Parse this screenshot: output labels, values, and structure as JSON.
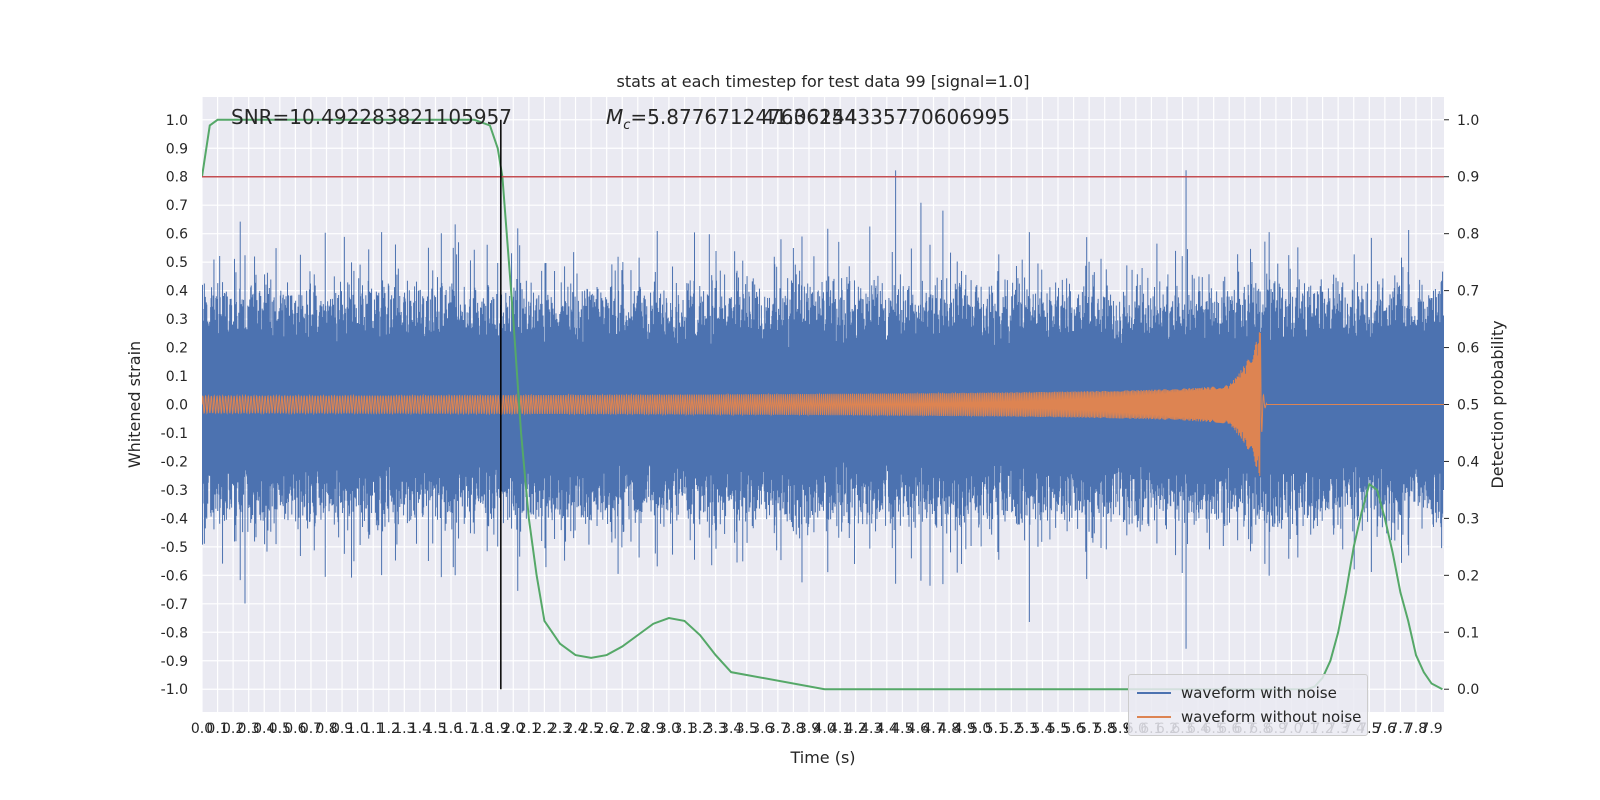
{
  "chart_data": {
    "type": "line",
    "title": "stats at each timestep for test data 99 [signal=1.0]",
    "xlabel": "Time (s)",
    "ylabel": "Whitened strain",
    "ylabel_right": "Detection probability",
    "xlim": [
      0.0,
      7.98
    ],
    "ylim": [
      -1.08,
      1.08
    ],
    "ylim_right": [
      -0.04,
      1.04
    ],
    "x_ticks": [
      "0.0",
      "0.1",
      "0.2",
      "0.3",
      "0.4",
      "0.5",
      "0.6",
      "0.7",
      "0.8",
      "0.9",
      "1.0",
      "1.1",
      "1.2",
      "1.3",
      "1.4",
      "1.5",
      "1.6",
      "1.7",
      "1.8",
      "1.9",
      "2.0",
      "2.1",
      "2.2",
      "2.3",
      "2.4",
      "2.5",
      "2.6",
      "2.7",
      "2.8",
      "2.9",
      "3.0",
      "3.1",
      "3.2",
      "3.3",
      "3.4",
      "3.5",
      "3.6",
      "3.7",
      "3.8",
      "3.9",
      "4.0",
      "4.1",
      "4.2",
      "4.3",
      "4.4",
      "4.5",
      "4.6",
      "4.7",
      "4.8",
      "4.9",
      "5.0",
      "5.1",
      "5.2",
      "5.3",
      "5.4",
      "5.5",
      "5.6",
      "5.7",
      "5.8",
      "5.9",
      "6.0",
      "6.1",
      "6.2",
      "6.3",
      "6.4",
      "6.5",
      "6.6",
      "6.7",
      "6.8",
      "6.9",
      "7.0",
      "7.1",
      "7.2",
      "7.3",
      "7.4",
      "7.5",
      "7.6",
      "7.7",
      "7.8",
      "7.9"
    ],
    "y_ticks_left": [
      "1.0",
      "0.9",
      "0.8",
      "0.7",
      "0.6",
      "0.5",
      "0.4",
      "0.3",
      "0.2",
      "0.1",
      "0.0",
      "-0.1",
      "-0.2",
      "-0.3",
      "-0.4",
      "-0.5",
      "-0.6",
      "-0.7",
      "-0.8",
      "-0.9",
      "-1.0"
    ],
    "y_ticks_right": [
      "1.0",
      "0.9",
      "0.8",
      "0.7",
      "0.6",
      "0.5",
      "0.4",
      "0.3",
      "0.2",
      "0.1",
      "0.0"
    ],
    "annotations": {
      "snr": "SNR=10.492283821105957",
      "mc_prefix": "M",
      "mc_sub": "c",
      "mc_value": "=5.877671247636254",
      "mc_overlap": "41.06144335770606995"
    },
    "threshold_right": 0.9,
    "vertical_marker_x": 1.92,
    "series": [
      {
        "name": "waveform with noise",
        "color": "#4c72b0",
        "axis": "left",
        "description": "whitened noisy strain, envelope roughly ±0.5 with spikes up to ~1.0"
      },
      {
        "name": "waveform without noise",
        "color": "#dd8452",
        "axis": "left",
        "chirp_start_amp": 0.03,
        "chirp_peak_amp": 0.26,
        "merger_time": 6.8
      },
      {
        "name": "Detection probability",
        "color": "#55a868",
        "axis": "right",
        "x": [
          0.0,
          0.05,
          0.1,
          0.2,
          0.4,
          0.6,
          0.8,
          1.0,
          1.2,
          1.4,
          1.6,
          1.75,
          1.85,
          1.9,
          1.93,
          2.0,
          2.05,
          2.1,
          2.15,
          2.2,
          2.3,
          2.4,
          2.5,
          2.6,
          2.7,
          2.8,
          2.9,
          3.0,
          3.1,
          3.2,
          3.3,
          3.4,
          4.0,
          5.0,
          6.0,
          6.9,
          7.0,
          7.1,
          7.15,
          7.2,
          7.25,
          7.3,
          7.35,
          7.4,
          7.45,
          7.5,
          7.55,
          7.6,
          7.65,
          7.7,
          7.75,
          7.8,
          7.85,
          7.9,
          7.97
        ],
        "values": [
          0.9,
          0.99,
          1.0,
          1.0,
          1.0,
          1.0,
          1.0,
          1.0,
          1.0,
          1.0,
          1.0,
          1.0,
          0.99,
          0.95,
          0.9,
          0.65,
          0.45,
          0.3,
          0.2,
          0.12,
          0.08,
          0.06,
          0.055,
          0.06,
          0.075,
          0.095,
          0.115,
          0.125,
          0.12,
          0.095,
          0.06,
          0.03,
          0.0,
          0.0,
          0.0,
          0.0,
          0.0,
          0.0,
          0.005,
          0.02,
          0.05,
          0.1,
          0.17,
          0.25,
          0.31,
          0.36,
          0.35,
          0.3,
          0.24,
          0.17,
          0.12,
          0.06,
          0.03,
          0.01,
          0.0
        ]
      }
    ],
    "legend": {
      "position": "lower-right",
      "entries": [
        "waveform with noise",
        "waveform without noise"
      ]
    }
  }
}
